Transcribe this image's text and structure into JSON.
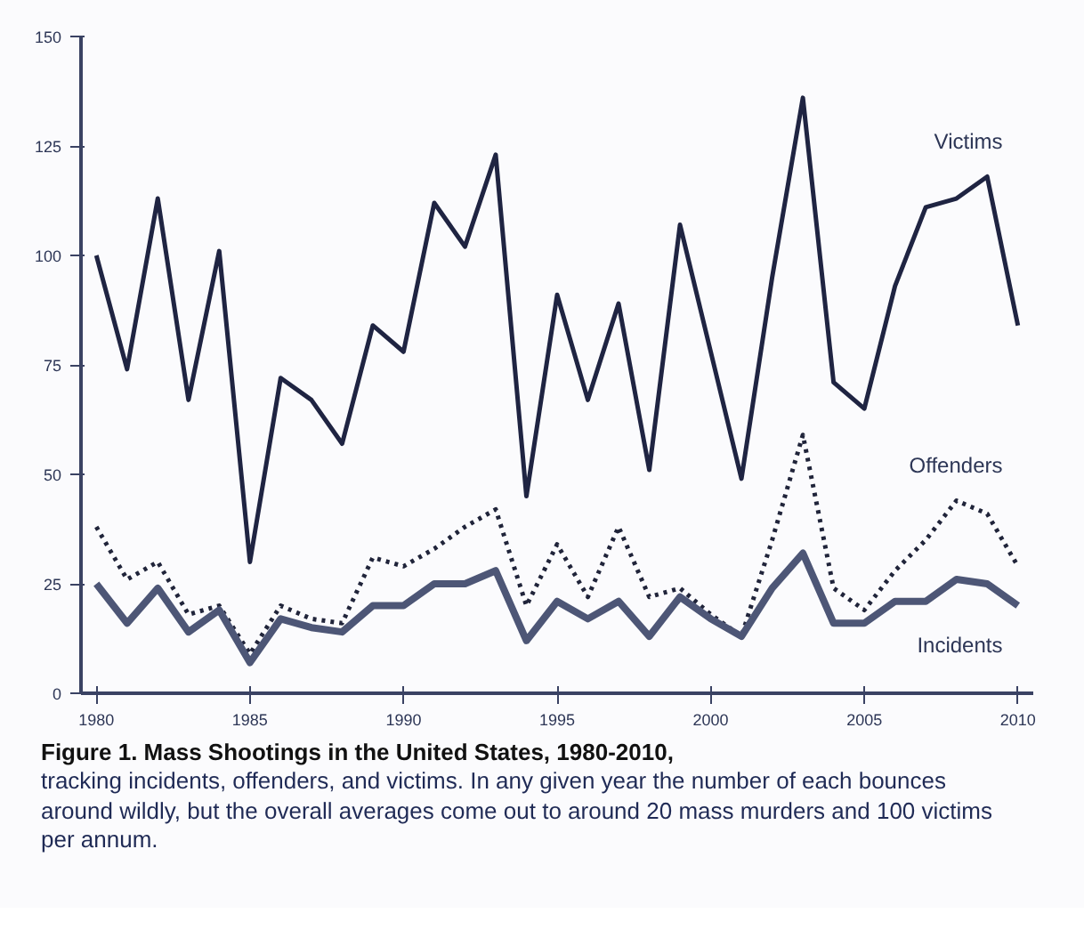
{
  "chart_data": {
    "type": "line",
    "title": "Figure 1. Mass Shootings in the United States, 1980-2010,",
    "subtitle": "tracking incidents, offenders, and victims. In any given year the number of each bounces around wildly, but the overall averages come out to around 20 mass murders and 100 victims per annum.",
    "x": [
      1980,
      1981,
      1982,
      1983,
      1984,
      1985,
      1986,
      1987,
      1988,
      1989,
      1990,
      1991,
      1992,
      1993,
      1994,
      1995,
      1996,
      1997,
      1998,
      1999,
      2000,
      2001,
      2002,
      2003,
      2004,
      2005,
      2006,
      2007,
      2008,
      2009,
      2010
    ],
    "series": [
      {
        "name": "Victims",
        "color": "#1f2442",
        "line_style": "solid",
        "values": [
          100,
          74,
          113,
          67,
          101,
          30,
          72,
          67,
          57,
          84,
          78,
          112,
          102,
          123,
          45,
          91,
          67,
          89,
          51,
          107,
          78,
          49,
          95,
          136,
          71,
          65,
          93,
          111,
          113,
          118,
          84
        ]
      },
      {
        "name": "Offenders",
        "color": "#20243a",
        "line_style": "dotted",
        "values": [
          38,
          26,
          30,
          18,
          20,
          9,
          20,
          17,
          16,
          31,
          29,
          33,
          38,
          42,
          20,
          34,
          22,
          38,
          22,
          24,
          18,
          13,
          35,
          59,
          24,
          19,
          28,
          35,
          44,
          41,
          29
        ]
      },
      {
        "name": "Incidents",
        "color": "#4d5676",
        "line_style": "solid",
        "values": [
          25,
          16,
          24,
          14,
          19,
          7,
          17,
          15,
          14,
          20,
          20,
          25,
          25,
          28,
          12,
          21,
          17,
          21,
          13,
          22,
          17,
          13,
          24,
          32,
          16,
          16,
          21,
          21,
          26,
          25,
          20
        ]
      }
    ],
    "xlim": [
      1979.5,
      2010.5
    ],
    "xticks": [
      1980,
      1985,
      1990,
      1995,
      2000,
      2005,
      2010
    ],
    "ylim": [
      0,
      150
    ],
    "yticks": [
      0,
      25,
      50,
      75,
      100,
      125,
      150
    ],
    "grid": false,
    "marker": "none"
  }
}
